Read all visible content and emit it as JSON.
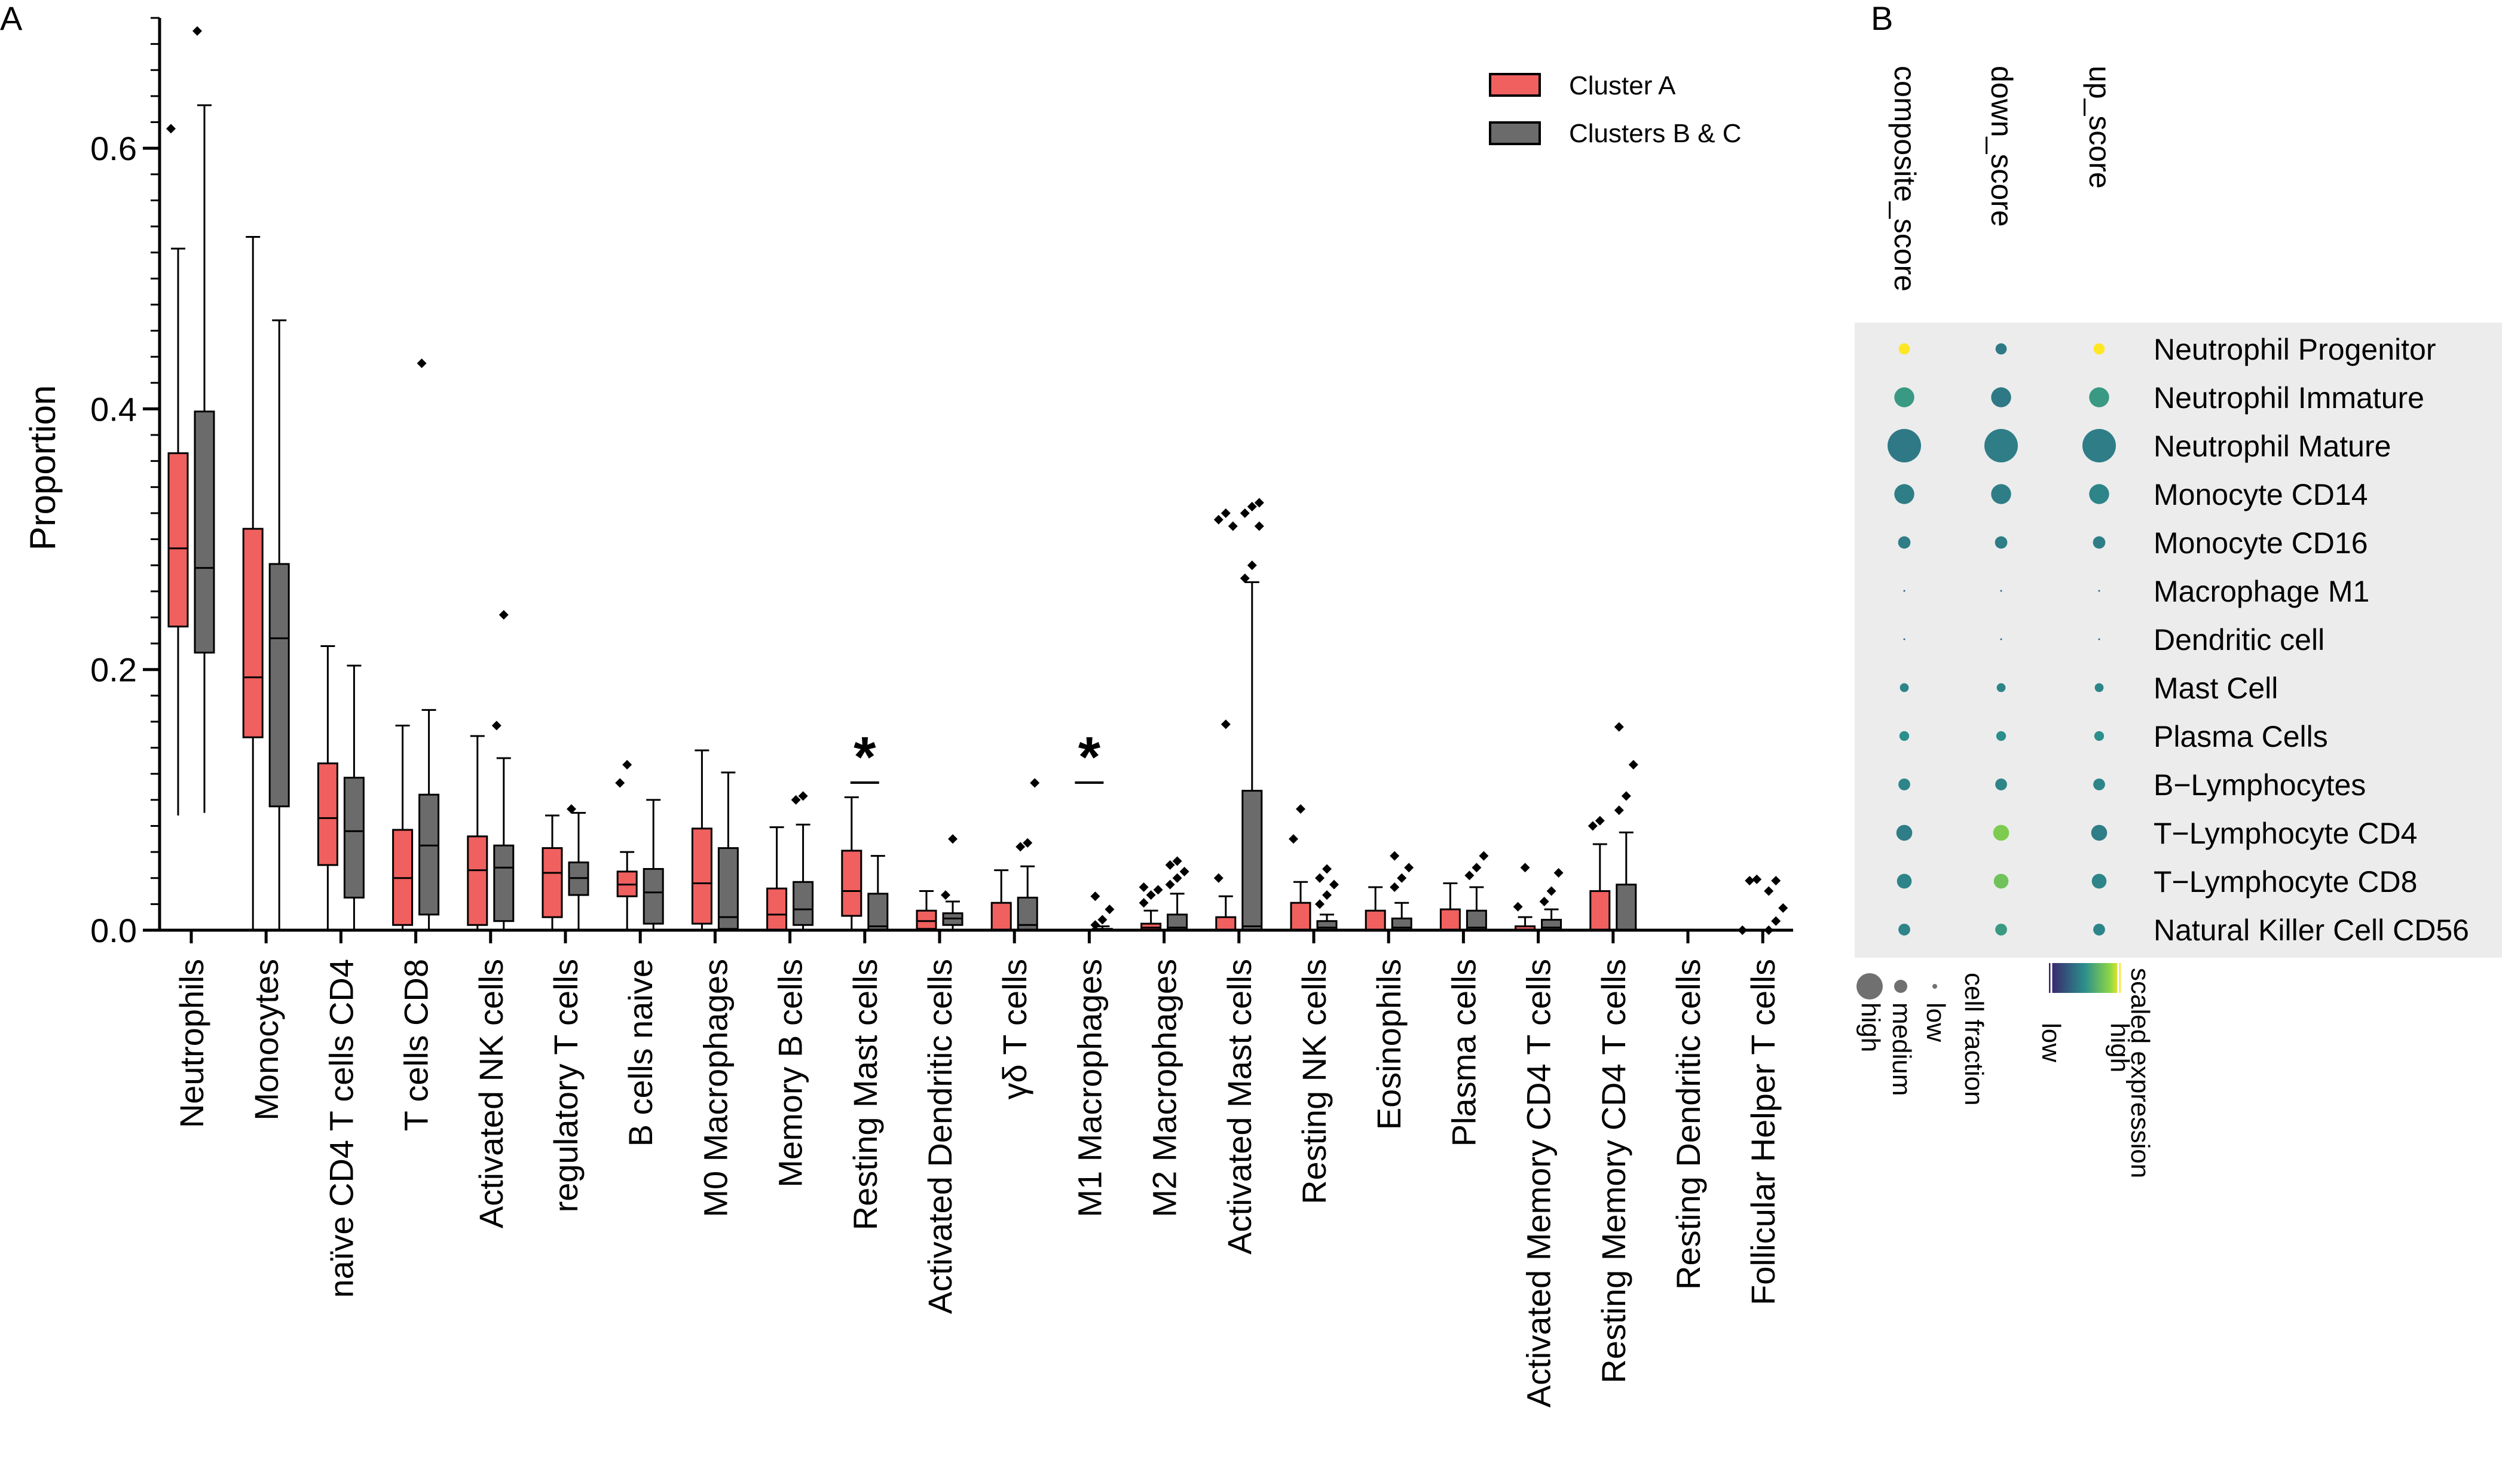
{
  "chart_data": [
    {
      "type": "boxplot",
      "panel_label": "A",
      "ylabel": "Proportion",
      "ylim": [
        0,
        0.7
      ],
      "yticks": [
        0.0,
        0.2,
        0.4,
        0.6
      ],
      "ytick_labels": [
        "0.0",
        "0.2",
        "0.4",
        "0.6"
      ],
      "legend": {
        "position": "top-right",
        "entries": [
          "Cluster A",
          "Clusters B & C"
        ]
      },
      "colors": {
        "Cluster A": "#f0605e",
        "Clusters B & C": "#6b6b6b"
      },
      "categories": [
        "Neutrophils",
        "Monocytes",
        "naïve CD4 T cells CD4",
        "T cells CD8",
        "Activated NK cells",
        "regulatory T cells",
        "B cells naive",
        "M0 Macrophages",
        "Memory B cells",
        "Resting Mast cells",
        "Activated Dendritic cells",
        "γδ T cells",
        "M1 Macrophages",
        "M2 Macrophages",
        "Activated Mast cells",
        "Resting NK cells",
        "Eosinophils",
        "Plasma cells",
        "Activated Memory CD4 T cells",
        "Resting Memory CD4 T cells",
        "Resting Dendritic cells",
        "Follicular Helper T cells"
      ],
      "significance": [
        {
          "category": "Resting Mast cells",
          "label": "*"
        },
        {
          "category": "M1 Macrophages",
          "label": "*"
        }
      ],
      "series": [
        {
          "name": "Cluster A",
          "boxes": [
            {
              "min": 0.088,
              "q1": 0.233,
              "median": 0.293,
              "q3": 0.366,
              "max": 0.523,
              "outliers": [
                0.615
              ]
            },
            {
              "min": 0.0,
              "q1": 0.148,
              "median": 0.194,
              "q3": 0.308,
              "max": 0.532,
              "outliers": []
            },
            {
              "min": 0.0,
              "q1": 0.05,
              "median": 0.086,
              "q3": 0.128,
              "max": 0.218,
              "outliers": []
            },
            {
              "min": 0.0,
              "q1": 0.004,
              "median": 0.04,
              "q3": 0.077,
              "max": 0.157,
              "outliers": []
            },
            {
              "min": 0.0,
              "q1": 0.004,
              "median": 0.046,
              "q3": 0.072,
              "max": 0.149,
              "outliers": []
            },
            {
              "min": 0.0,
              "q1": 0.01,
              "median": 0.044,
              "q3": 0.063,
              "max": 0.088,
              "outliers": []
            },
            {
              "min": 0.0,
              "q1": 0.026,
              "median": 0.035,
              "q3": 0.045,
              "max": 0.06,
              "outliers": [
                0.113,
                0.127
              ]
            },
            {
              "min": 0.0,
              "q1": 0.005,
              "median": 0.036,
              "q3": 0.078,
              "max": 0.138,
              "outliers": []
            },
            {
              "min": 0.0,
              "q1": 0.0,
              "median": 0.012,
              "q3": 0.032,
              "max": 0.079,
              "outliers": []
            },
            {
              "min": 0.0,
              "q1": 0.011,
              "median": 0.03,
              "q3": 0.061,
              "max": 0.102,
              "outliers": []
            },
            {
              "min": 0.0,
              "q1": 0.001,
              "median": 0.007,
              "q3": 0.015,
              "max": 0.03,
              "outliers": []
            },
            {
              "min": 0.0,
              "q1": 0.0,
              "median": 0.0,
              "q3": 0.021,
              "max": 0.046,
              "outliers": []
            },
            {
              "min": 0.0,
              "q1": 0.0,
              "median": 0.0,
              "q3": 0.0,
              "max": 0.0,
              "outliers": []
            },
            {
              "min": 0.0,
              "q1": 0.0,
              "median": 0.002,
              "q3": 0.005,
              "max": 0.015,
              "outliers": [
                0.021,
                0.027,
                0.031,
                0.033
              ]
            },
            {
              "min": 0.0,
              "q1": 0.0,
              "median": 0.0,
              "q3": 0.01,
              "max": 0.026,
              "outliers": [
                0.04,
                0.158,
                0.31,
                0.315,
                0.32
              ]
            },
            {
              "min": 0.0,
              "q1": 0.0,
              "median": 0.0,
              "q3": 0.021,
              "max": 0.037,
              "outliers": [
                0.07,
                0.093
              ]
            },
            {
              "min": 0.0,
              "q1": 0.0,
              "median": 0.0,
              "q3": 0.015,
              "max": 0.033,
              "outliers": []
            },
            {
              "min": 0.0,
              "q1": 0.0,
              "median": 0.0,
              "q3": 0.016,
              "max": 0.036,
              "outliers": []
            },
            {
              "min": 0.0,
              "q1": 0.0,
              "median": 0.0,
              "q3": 0.003,
              "max": 0.01,
              "outliers": [
                0.018,
                0.048
              ]
            },
            {
              "min": 0.0,
              "q1": 0.0,
              "median": 0.0,
              "q3": 0.03,
              "max": 0.066,
              "outliers": [
                0.08,
                0.084
              ]
            },
            {
              "min": 0.0,
              "q1": 0.0,
              "median": 0.0,
              "q3": 0.0,
              "max": 0.0,
              "outliers": []
            },
            {
              "min": 0.0,
              "q1": 0.0,
              "median": 0.0,
              "q3": 0.0,
              "max": 0.0,
              "outliers": [
                0.0,
                0.038,
                0.039
              ]
            }
          ]
        },
        {
          "name": "Clusters B & C",
          "boxes": [
            {
              "min": 0.09,
              "q1": 0.213,
              "median": 0.278,
              "q3": 0.398,
              "max": 0.633,
              "outliers": [
                0.69
              ]
            },
            {
              "min": 0.0,
              "q1": 0.095,
              "median": 0.224,
              "q3": 0.281,
              "max": 0.468,
              "outliers": []
            },
            {
              "min": 0.0,
              "q1": 0.025,
              "median": 0.076,
              "q3": 0.117,
              "max": 0.203,
              "outliers": []
            },
            {
              "min": 0.0,
              "q1": 0.012,
              "median": 0.065,
              "q3": 0.104,
              "max": 0.169,
              "outliers": [
                0.435
              ]
            },
            {
              "min": 0.0,
              "q1": 0.007,
              "median": 0.048,
              "q3": 0.065,
              "max": 0.132,
              "outliers": [
                0.157,
                0.242
              ]
            },
            {
              "min": 0.0,
              "q1": 0.027,
              "median": 0.04,
              "q3": 0.052,
              "max": 0.09,
              "outliers": [
                0.093
              ]
            },
            {
              "min": 0.0,
              "q1": 0.005,
              "median": 0.029,
              "q3": 0.047,
              "max": 0.1,
              "outliers": []
            },
            {
              "min": 0.0,
              "q1": 0.001,
              "median": 0.01,
              "q3": 0.063,
              "max": 0.121,
              "outliers": []
            },
            {
              "min": 0.0,
              "q1": 0.004,
              "median": 0.016,
              "q3": 0.037,
              "max": 0.081,
              "outliers": [
                0.1,
                0.103
              ]
            },
            {
              "min": 0.0,
              "q1": 0.0,
              "median": 0.003,
              "q3": 0.028,
              "max": 0.057,
              "outliers": []
            },
            {
              "min": 0.0,
              "q1": 0.004,
              "median": 0.009,
              "q3": 0.013,
              "max": 0.022,
              "outliers": [
                0.027,
                0.07
              ]
            },
            {
              "min": 0.0,
              "q1": 0.0,
              "median": 0.004,
              "q3": 0.025,
              "max": 0.049,
              "outliers": [
                0.064,
                0.067,
                0.113
              ]
            },
            {
              "min": 0.0,
              "q1": 0.0,
              "median": 0.0,
              "q3": 0.001,
              "max": 0.003,
              "outliers": [
                0.004,
                0.008,
                0.016,
                0.026
              ]
            },
            {
              "min": 0.0,
              "q1": 0.0,
              "median": 0.002,
              "q3": 0.012,
              "max": 0.028,
              "outliers": [
                0.035,
                0.04,
                0.045,
                0.05,
                0.053
              ]
            },
            {
              "min": 0.0,
              "q1": 0.0,
              "median": 0.003,
              "q3": 0.107,
              "max": 0.267,
              "outliers": [
                0.27,
                0.28,
                0.31,
                0.32,
                0.325,
                0.328
              ]
            },
            {
              "min": 0.0,
              "q1": 0.0,
              "median": 0.002,
              "q3": 0.007,
              "max": 0.012,
              "outliers": [
                0.02,
                0.027,
                0.035,
                0.04,
                0.047
              ]
            },
            {
              "min": 0.0,
              "q1": 0.0,
              "median": 0.002,
              "q3": 0.009,
              "max": 0.021,
              "outliers": [
                0.033,
                0.04,
                0.048,
                0.057
              ]
            },
            {
              "min": 0.0,
              "q1": 0.0,
              "median": 0.002,
              "q3": 0.015,
              "max": 0.033,
              "outliers": [
                0.042,
                0.048,
                0.057
              ]
            },
            {
              "min": 0.0,
              "q1": 0.0,
              "median": 0.002,
              "q3": 0.008,
              "max": 0.016,
              "outliers": [
                0.022,
                0.03,
                0.044
              ]
            },
            {
              "min": 0.0,
              "q1": 0.0,
              "median": 0.0,
              "q3": 0.035,
              "max": 0.075,
              "outliers": [
                0.092,
                0.103,
                0.127,
                0.156
              ]
            },
            {
              "min": 0.0,
              "q1": 0.0,
              "median": 0.0,
              "q3": 0.0,
              "max": 0.0,
              "outliers": []
            },
            {
              "min": 0.0,
              "q1": 0.0,
              "median": 0.0,
              "q3": 0.0,
              "max": 0.0,
              "outliers": [
                0.0,
                0.007,
                0.017,
                0.03,
                0.038
              ]
            }
          ]
        }
      ]
    },
    {
      "type": "dotplot",
      "panel_label": "B",
      "columns": [
        "composite_score",
        "down_score",
        "up_score"
      ],
      "rows": [
        "Neutrophil Progenitor",
        "Neutrophil Immature",
        "Neutrophil Mature",
        "Monocyte CD14",
        "Monocyte CD16",
        "Macrophage M1",
        "Dendritic cell",
        "Mast Cell",
        "Plasma Cells",
        "B−Lymphocytes",
        "T−Lymphocyte CD4",
        "T−Lymphocyte CD8",
        "Natural Killer Cell CD56"
      ],
      "cell_fraction": [
        [
          0.05,
          0.05,
          0.05
        ],
        [
          0.28,
          0.28,
          0.28
        ],
        [
          1.0,
          1.0,
          1.0
        ],
        [
          0.28,
          0.28,
          0.28
        ],
        [
          0.07,
          0.07,
          0.07
        ],
        [
          0.0,
          0.0,
          0.0
        ],
        [
          0.0,
          0.0,
          0.0
        ],
        [
          0.02,
          0.02,
          0.02
        ],
        [
          0.03,
          0.03,
          0.03
        ],
        [
          0.06,
          0.06,
          0.06
        ],
        [
          0.15,
          0.15,
          0.15
        ],
        [
          0.12,
          0.12,
          0.12
        ],
        [
          0.06,
          0.06,
          0.06
        ]
      ],
      "scaled_expression": [
        [
          1.0,
          0.4,
          1.0
        ],
        [
          0.55,
          0.4,
          0.55
        ],
        [
          0.4,
          0.42,
          0.42
        ],
        [
          0.42,
          0.42,
          0.45
        ],
        [
          0.42,
          0.42,
          0.42
        ],
        [
          0.3,
          0.3,
          0.3
        ],
        [
          0.3,
          0.3,
          0.3
        ],
        [
          0.45,
          0.45,
          0.45
        ],
        [
          0.5,
          0.5,
          0.5
        ],
        [
          0.45,
          0.45,
          0.45
        ],
        [
          0.42,
          0.8,
          0.42
        ],
        [
          0.45,
          0.75,
          0.45
        ],
        [
          0.45,
          0.55,
          0.45
        ]
      ],
      "size_legend": {
        "title": "cell fraction",
        "labels": [
          "high",
          "medium",
          "low"
        ]
      },
      "color_legend": {
        "title": "scaled expression",
        "labels": [
          "low",
          "high"
        ],
        "colors": [
          "#3b1f6b",
          "#2b8f8c",
          "#8bd646",
          "#fde725"
        ]
      }
    }
  ]
}
